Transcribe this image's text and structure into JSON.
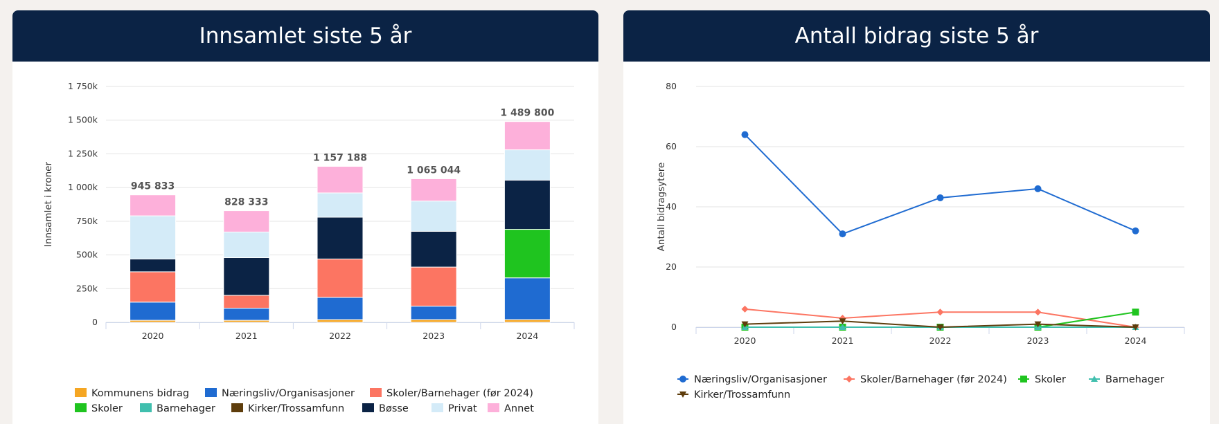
{
  "left_card": {
    "title": "Innsamlet siste 5 år"
  },
  "right_card": {
    "title": "Antall bidrag siste 5 år"
  },
  "chart_data": [
    {
      "type": "bar",
      "stacked": true,
      "title": "Innsamlet siste 5 år",
      "ylabel": "Innsamlet i kroner",
      "ylim": [
        0,
        1750000
      ],
      "yticks": [
        0,
        250000,
        500000,
        750000,
        1000000,
        1250000,
        1500000,
        1750000
      ],
      "ytick_labels": [
        "0",
        "250k",
        "500k",
        "750k",
        "1 000k",
        "1 250k",
        "1 500k",
        "1 750k"
      ],
      "categories": [
        "2020",
        "2021",
        "2022",
        "2023",
        "2024"
      ],
      "totals": [
        945833,
        828333,
        1157188,
        1065044,
        1489800
      ],
      "total_labels": [
        "945 833",
        "828 333",
        "1 157 188",
        "1 065 044",
        "1 489 800"
      ],
      "grid": true,
      "legend_position": "bottom",
      "series": [
        {
          "name": "Kommunens bidrag",
          "color": "#f5a623",
          "values": [
            15000,
            15000,
            20000,
            20000,
            20000
          ]
        },
        {
          "name": "Næringsliv/Organisasjoner",
          "color": "#1f6bd1",
          "values": [
            135000,
            90000,
            165000,
            100000,
            310000
          ]
        },
        {
          "name": "Skoler/Barnehager (før 2024)",
          "color": "#fc7562",
          "values": [
            225000,
            95000,
            285000,
            290000,
            0
          ]
        },
        {
          "name": "Skoler",
          "color": "#1fc41f",
          "values": [
            0,
            0,
            0,
            0,
            360000
          ]
        },
        {
          "name": "Barnehager",
          "color": "#40bfae",
          "values": [
            0,
            0,
            0,
            0,
            0
          ]
        },
        {
          "name": "Kirker/Trossamfunn",
          "color": "#5e3d0c",
          "values": [
            0,
            0,
            0,
            0,
            0
          ]
        },
        {
          "name": "Bøsse",
          "color": "#0b2345",
          "values": [
            95000,
            280000,
            310000,
            265000,
            365000
          ]
        },
        {
          "name": "Privat",
          "color": "#d4ebf8",
          "values": [
            320000,
            190000,
            180000,
            225000,
            225000
          ]
        },
        {
          "name": "Annet",
          "color": "#fdb0da",
          "values": [
            155833,
            158333,
            197188,
            165044,
            209800
          ]
        }
      ]
    },
    {
      "type": "line",
      "title": "Antall bidrag siste 5 år",
      "ylabel": "Antall bidragsytere",
      "ylim": [
        0,
        80
      ],
      "yticks": [
        0,
        20,
        40,
        60,
        80
      ],
      "x": [
        "2020",
        "2021",
        "2022",
        "2023",
        "2024"
      ],
      "grid": true,
      "legend_position": "bottom",
      "series": [
        {
          "name": "Næringsliv/Organisasjoner",
          "color": "#1f6bd1",
          "marker": "circle",
          "values": [
            64,
            31,
            43,
            46,
            32
          ]
        },
        {
          "name": "Skoler/Barnehager (før 2024)",
          "color": "#fc7562",
          "marker": "diamond",
          "values": [
            6,
            3,
            5,
            5,
            0
          ]
        },
        {
          "name": "Skoler",
          "color": "#1fc41f",
          "marker": "square",
          "values": [
            0,
            0,
            0,
            0,
            5
          ]
        },
        {
          "name": "Barnehager",
          "color": "#40bfae",
          "marker": "triangle",
          "values": [
            0,
            0,
            0,
            0,
            0
          ]
        },
        {
          "name": "Kirker/Trossamfunn",
          "color": "#5e3d0c",
          "marker": "triangle-down",
          "values": [
            1,
            2,
            0,
            1,
            0
          ]
        }
      ]
    }
  ]
}
